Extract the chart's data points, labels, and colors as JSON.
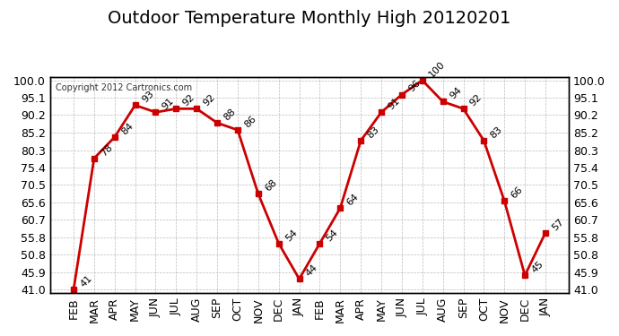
{
  "title": "Outdoor Temperature Monthly High 20120201",
  "copyright": "Copyright 2012 Cartronics.com",
  "months": [
    "FEB",
    "MAR",
    "APR",
    "MAY",
    "JUN",
    "JUL",
    "AUG",
    "SEP",
    "OCT",
    "NOV",
    "DEC",
    "JAN",
    "FEB",
    "MAR",
    "APR",
    "MAY",
    "JUN",
    "JUL",
    "AUG",
    "SEP",
    "OCT",
    "NOV",
    "DEC",
    "JAN"
  ],
  "values": [
    41,
    78,
    84,
    93,
    91,
    92,
    92,
    88,
    86,
    68,
    54,
    44,
    54,
    64,
    83,
    91,
    96,
    100,
    94,
    92,
    83,
    66,
    45,
    57
  ],
  "line_color": "#cc0000",
  "marker_color": "#cc0000",
  "bg_color": "#ffffff",
  "grid_color": "#aaaaaa",
  "label_color": "#000000",
  "ymin": 41.0,
  "ymax": 100.0,
  "yticks": [
    41.0,
    45.9,
    50.8,
    55.8,
    60.7,
    65.6,
    70.5,
    75.4,
    80.3,
    85.2,
    90.2,
    95.1,
    100.0
  ],
  "title_fontsize": 14,
  "tick_fontsize": 9,
  "annotation_fontsize": 8
}
